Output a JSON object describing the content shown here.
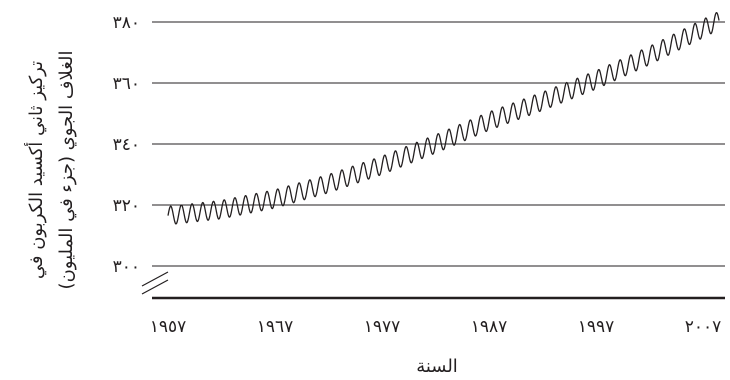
{
  "chart_data": {
    "type": "line",
    "title": "",
    "xlabel": "السنة",
    "ylabel_lines": [
      "تركيز ثاني أكسيد الكربون في",
      "الغلاف الجوي (جزء في المليون)"
    ],
    "xlim": [
      1957,
      2008.5
    ],
    "ylim": [
      300,
      383
    ],
    "axis_break": true,
    "grid": "horizontal",
    "line_color": "#231f20",
    "x_ticks": [
      {
        "value": 1957,
        "label": "١٩٥٧"
      },
      {
        "value": 1967,
        "label": "١٩٦٧"
      },
      {
        "value": 1977,
        "label": "١٩٧٧"
      },
      {
        "value": 1987,
        "label": "١٩٨٧"
      },
      {
        "value": 1997,
        "label": "١٩٩٧"
      },
      {
        "value": 2007,
        "label": "٢٠٠٧"
      }
    ],
    "y_ticks": [
      {
        "value": 300,
        "label": "٣٠٠"
      },
      {
        "value": 320,
        "label": "٣٢٠"
      },
      {
        "value": 340,
        "label": "٣٤٠"
      },
      {
        "value": 360,
        "label": "٣٦٠"
      },
      {
        "value": 380,
        "label": "٣٨٠"
      }
    ],
    "series": [
      {
        "seasonal_amplitude": 3,
        "trend": [
          {
            "x": 1957,
            "y": 316.5
          },
          {
            "x": 1962,
            "y": 318.5
          },
          {
            "x": 1967,
            "y": 322.0
          },
          {
            "x": 1972,
            "y": 327.0
          },
          {
            "x": 1977,
            "y": 333.0
          },
          {
            "x": 1982,
            "y": 340.0
          },
          {
            "x": 1987,
            "y": 347.5
          },
          {
            "x": 1992,
            "y": 354.0
          },
          {
            "x": 1997,
            "y": 361.0
          },
          {
            "x": 2002,
            "y": 369.0
          },
          {
            "x": 2008.5,
            "y": 380.5
          }
        ]
      }
    ]
  }
}
